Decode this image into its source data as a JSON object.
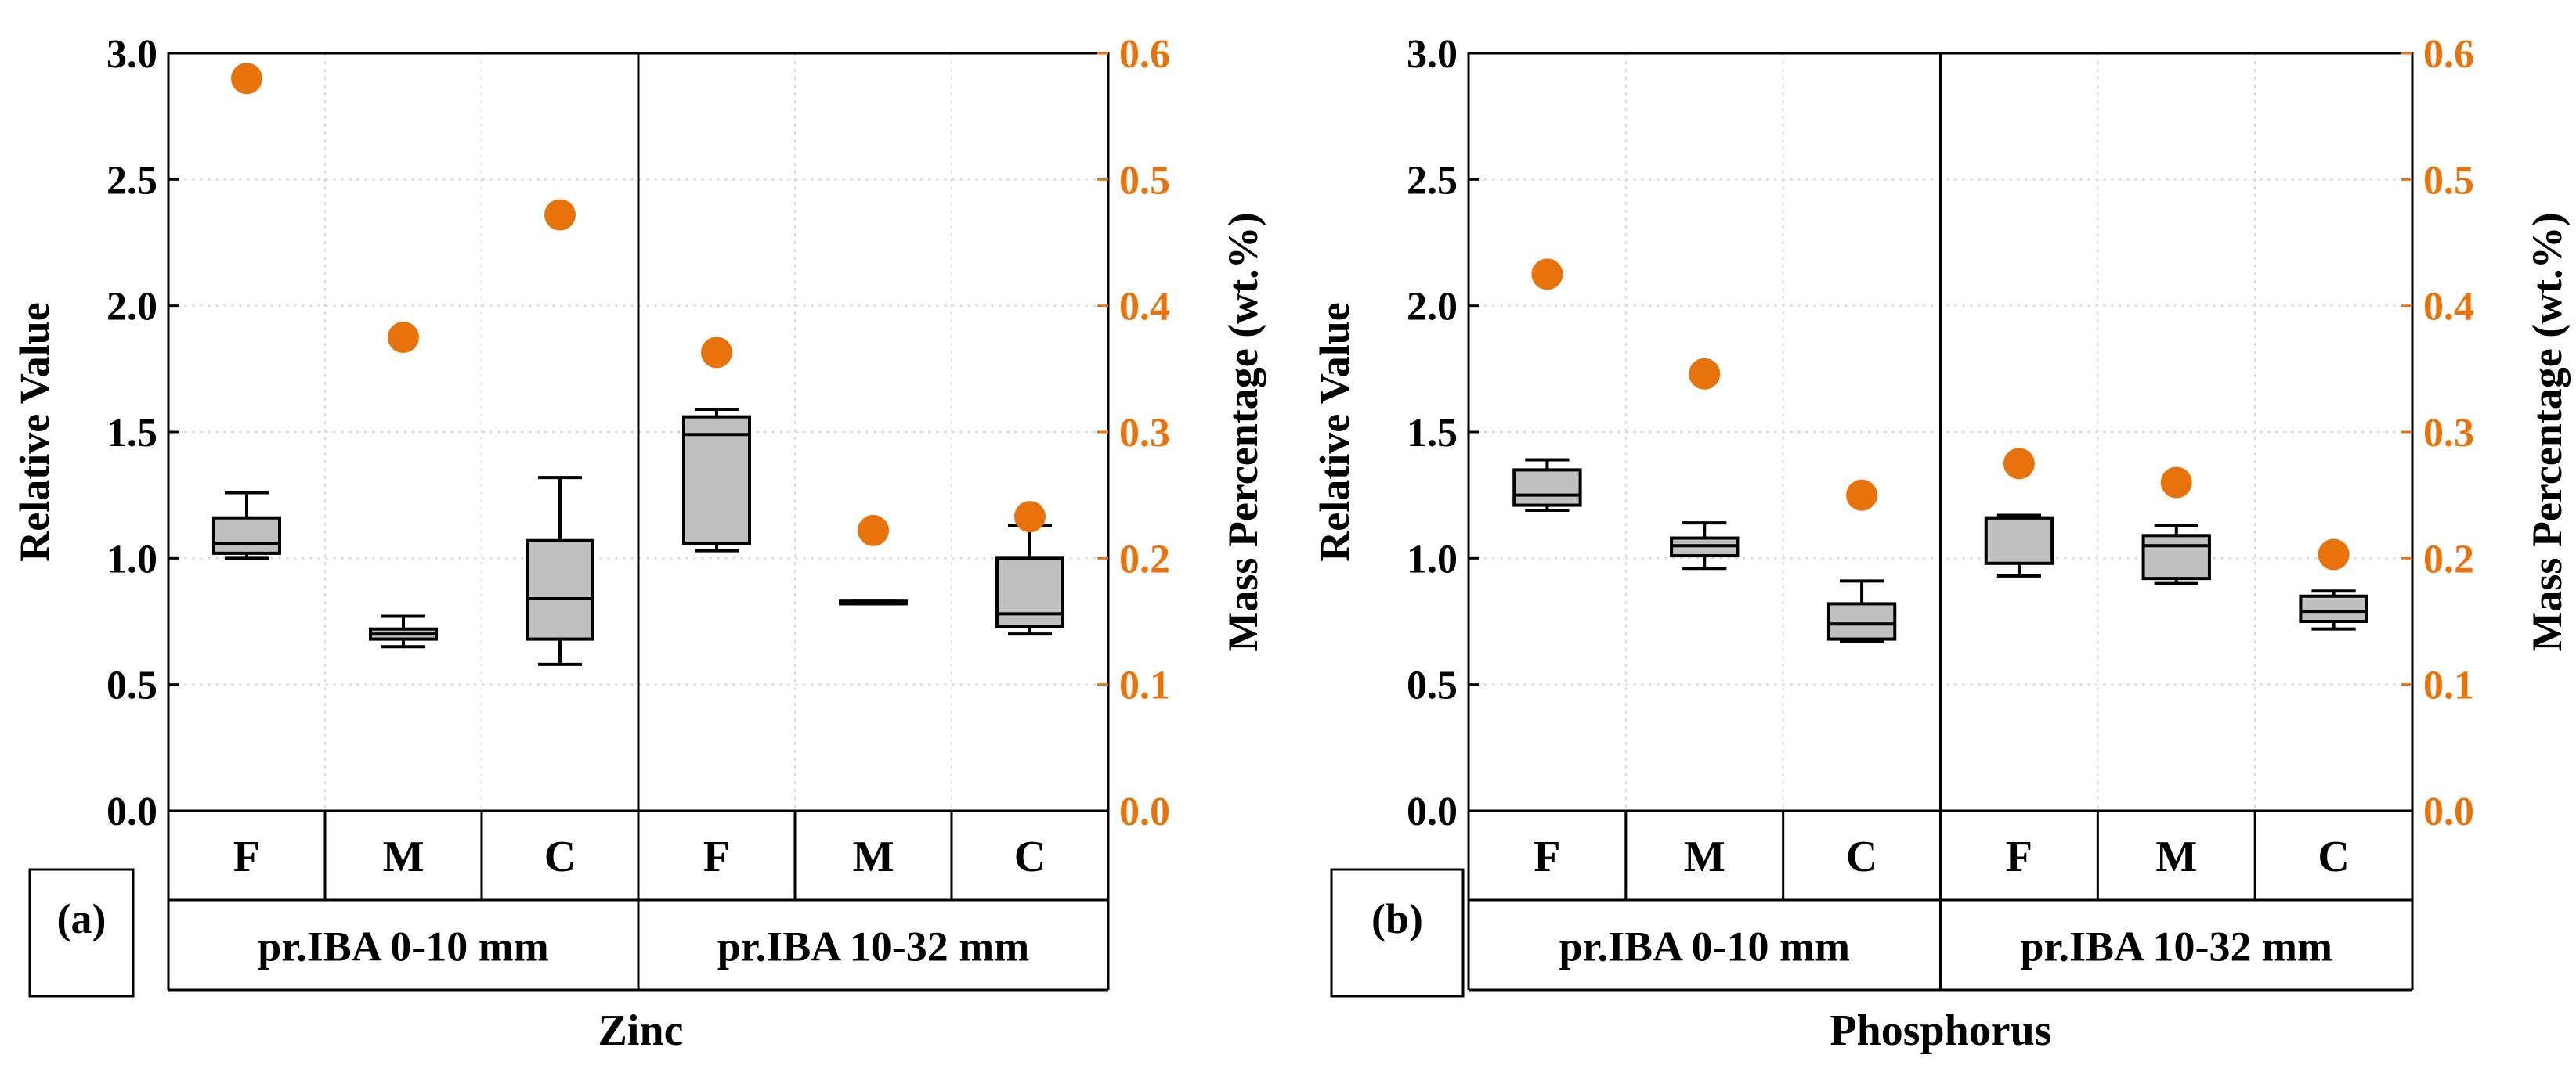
{
  "colors": {
    "box_fill": "#c0c0c0",
    "box_stroke": "#000000",
    "dot": "#e8720c",
    "grid": "#d9d9d9",
    "right_axis": "#e8720c"
  },
  "chart_data": [
    {
      "type": "box",
      "panel_label": "(a)",
      "element": "Zinc",
      "ylabel_left": "Relative Value",
      "ylabel_right": "Mass Percentage (wt.%)",
      "ylim_left": [
        0,
        3
      ],
      "ylim_right": [
        0,
        0.6
      ],
      "yticks_left": [
        "0.0",
        "0.5",
        "1.0",
        "1.5",
        "2.0",
        "2.5",
        "3.0"
      ],
      "yticks_right": [
        "0.0",
        "0.1",
        "0.2",
        "0.3",
        "0.4",
        "0.5",
        "0.6"
      ],
      "grid": true,
      "groups": [
        {
          "name": "pr.IBA 0-10 mm",
          "categories": [
            {
              "label": "F",
              "whisker_low": 1.0,
              "q1": 1.02,
              "median": 1.06,
              "q3": 1.16,
              "whisker_high": 1.26,
              "mass_pct": 0.58
            },
            {
              "label": "M",
              "whisker_low": 0.65,
              "q1": 0.68,
              "median": 0.7,
              "q3": 0.72,
              "whisker_high": 0.77,
              "mass_pct": 0.375
            },
            {
              "label": "C",
              "whisker_low": 0.58,
              "q1": 0.68,
              "median": 0.84,
              "q3": 1.07,
              "whisker_high": 1.32,
              "mass_pct": 0.472
            }
          ]
        },
        {
          "name": "pr.IBA 10-32 mm",
          "categories": [
            {
              "label": "F",
              "whisker_low": 1.03,
              "q1": 1.06,
              "median": 1.49,
              "q3": 1.56,
              "whisker_high": 1.59,
              "mass_pct": 0.363
            },
            {
              "label": "M",
              "whisker_low": 0.82,
              "q1": 0.82,
              "median": 0.82,
              "q3": 0.83,
              "whisker_high": 0.83,
              "mass_pct": 0.222
            },
            {
              "label": "C",
              "whisker_low": 0.7,
              "q1": 0.73,
              "median": 0.78,
              "q3": 1.0,
              "whisker_high": 1.13,
              "mass_pct": 0.233
            }
          ]
        }
      ]
    },
    {
      "type": "box",
      "panel_label": "(b)",
      "element": "Phosphorus",
      "ylabel_left": "Relative Value",
      "ylabel_right": "Mass Percentage (wt.%)",
      "ylim_left": [
        0,
        3
      ],
      "ylim_right": [
        0,
        0.6
      ],
      "yticks_left": [
        "0.0",
        "0.5",
        "1.0",
        "1.5",
        "2.0",
        "2.5",
        "3.0"
      ],
      "yticks_right": [
        "0.0",
        "0.1",
        "0.2",
        "0.3",
        "0.4",
        "0.5",
        "0.6"
      ],
      "grid": true,
      "groups": [
        {
          "name": "pr.IBA 0-10 mm",
          "categories": [
            {
              "label": "F",
              "whisker_low": 1.19,
              "q1": 1.21,
              "median": 1.25,
              "q3": 1.35,
              "whisker_high": 1.39,
              "mass_pct": 0.425
            },
            {
              "label": "M",
              "whisker_low": 0.96,
              "q1": 1.01,
              "median": 1.05,
              "q3": 1.08,
              "whisker_high": 1.14,
              "mass_pct": 0.346
            },
            {
              "label": "C",
              "whisker_low": 0.67,
              "q1": 0.68,
              "median": 0.74,
              "q3": 0.82,
              "whisker_high": 0.91,
              "mass_pct": 0.25
            }
          ]
        },
        {
          "name": "pr.IBA 10-32 mm",
          "categories": [
            {
              "label": "F",
              "whisker_low": 0.93,
              "q1": 0.98,
              "median": 1.16,
              "q3": 1.16,
              "whisker_high": 1.17,
              "mass_pct": 0.275
            },
            {
              "label": "M",
              "whisker_low": 0.9,
              "q1": 0.92,
              "median": 1.05,
              "q3": 1.09,
              "whisker_high": 1.13,
              "mass_pct": 0.26
            },
            {
              "label": "C",
              "whisker_low": 0.72,
              "q1": 0.75,
              "median": 0.79,
              "q3": 0.85,
              "whisker_high": 0.87,
              "mass_pct": 0.203
            }
          ]
        }
      ]
    }
  ]
}
